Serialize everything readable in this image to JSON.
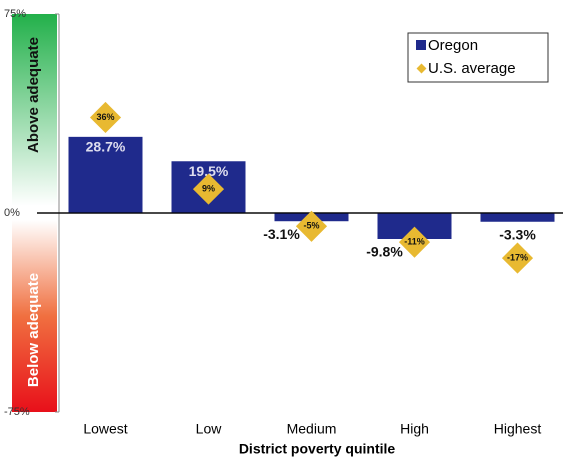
{
  "chart_data": {
    "type": "bar",
    "x_label": "District poverty quintile",
    "annotations": [
      "Above adequate",
      "Below adequate"
    ],
    "categories": [
      "Lowest",
      "Low",
      "Medium",
      "High",
      "Highest"
    ],
    "series": [
      {
        "name": "Oregon",
        "color": "#1f2a8c",
        "values": [
          28.7,
          19.5,
          -3.1,
          -9.8,
          -3.3
        ],
        "value_labels": [
          "28.7%",
          "19.5%",
          "-3.1%",
          "-9.8%",
          "-3.3%"
        ]
      },
      {
        "name": "U.S. average",
        "color": "#e8b931",
        "marker": "diamond",
        "values": [
          36,
          9,
          -5,
          -11,
          -17
        ],
        "value_labels": [
          "36%",
          "9%",
          "-5%",
          "-11%",
          "-17%"
        ]
      }
    ],
    "ylim": [
      -75,
      75
    ],
    "yticks": [
      {
        "value": 75,
        "label": "75%"
      },
      {
        "value": 0,
        "label": "0%"
      },
      {
        "value": -75,
        "label": "-75%"
      }
    ],
    "legend": "top-right"
  }
}
